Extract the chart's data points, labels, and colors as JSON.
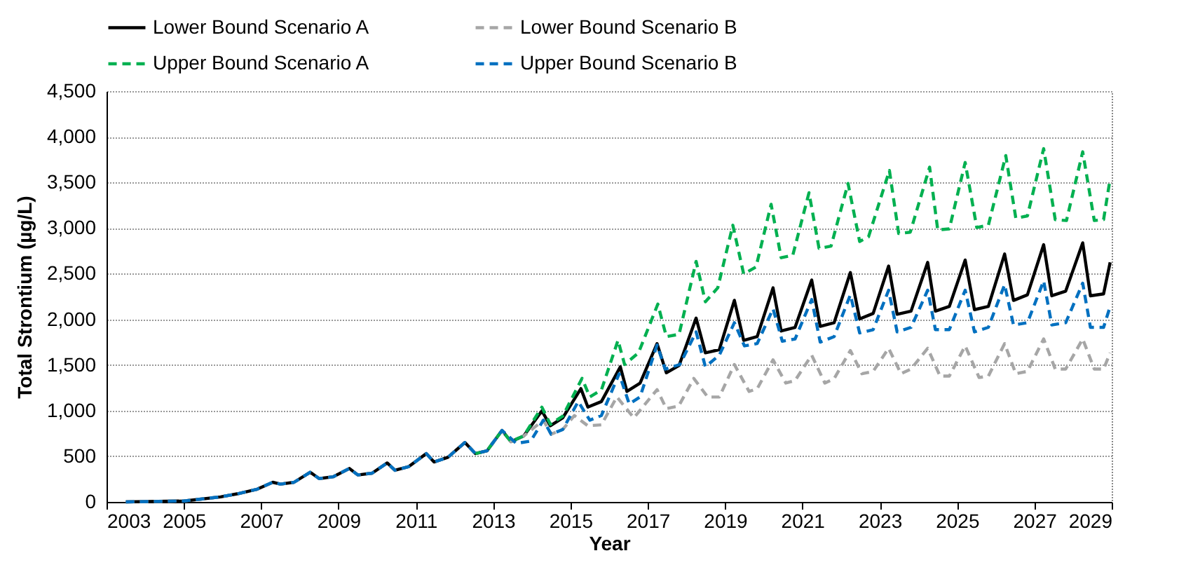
{
  "chart_data": {
    "type": "line",
    "xlabel": "Year",
    "ylabel": "Total Strontium (µg/L)",
    "xlim": [
      2003,
      2029
    ],
    "xticks": [
      2003,
      2005,
      2007,
      2009,
      2011,
      2013,
      2015,
      2017,
      2019,
      2021,
      2023,
      2025,
      2027,
      2029
    ],
    "ylim": [
      0,
      4500
    ],
    "yticks": [
      {
        "value": 0,
        "label": "0"
      },
      {
        "value": 500,
        "label": "500"
      },
      {
        "value": 1000,
        "label": "1,000"
      },
      {
        "value": 1500,
        "label": "1,500"
      },
      {
        "value": 2000,
        "label": "2,000"
      },
      {
        "value": 2500,
        "label": "2,500"
      },
      {
        "value": 3000,
        "label": "3,000"
      },
      {
        "value": 3500,
        "label": "3,500"
      },
      {
        "value": 4000,
        "label": "4,000"
      },
      {
        "value": 4500,
        "label": "4,500"
      }
    ],
    "grid": "y",
    "legend": "top",
    "marker": "none",
    "series": [
      {
        "name": "Lower Bound Scenario A",
        "color": "#000000",
        "line_style": "solid",
        "x": [
          2003.5,
          2005,
          2005.95,
          2006.4,
          2006.9,
          2007.3,
          2007.5,
          2007.85,
          2008.27,
          2008.5,
          2008.86,
          2009.28,
          2009.5,
          2009.87,
          2010.26,
          2010.46,
          2010.82,
          2011.27,
          2011.47,
          2011.83,
          2012.27,
          2012.54,
          2012.84,
          2013.23,
          2013.46,
          2013.79,
          2014.26,
          2014.48,
          2014.8,
          2015.27,
          2015.45,
          2015.8,
          2016.29,
          2016.46,
          2016.8,
          2017.24,
          2017.48,
          2017.81,
          2018.25,
          2018.49,
          2018.85,
          2019.24,
          2019.48,
          2019.83,
          2020.24,
          2020.45,
          2020.81,
          2021.24,
          2021.46,
          2021.82,
          2022.24,
          2022.48,
          2022.83,
          2023.23,
          2023.45,
          2023.81,
          2024.24,
          2024.44,
          2024.8,
          2025.21,
          2025.45,
          2025.81,
          2026.23,
          2026.46,
          2026.82,
          2027.24,
          2027.45,
          2027.81,
          2028.25,
          2028.45,
          2028.79,
          2028.96
        ],
        "values": [
          0,
          10,
          55,
          90,
          140,
          215,
          195,
          215,
          325,
          255,
          275,
          366,
          295,
          315,
          427,
          346,
          387,
          529,
          437,
          488,
          651,
          529,
          559,
          783,
          661,
          722,
          997,
          834,
          921,
          1241,
          1038,
          1099,
          1480,
          1210,
          1300,
          1734,
          1414,
          1495,
          2014,
          1633,
          1668,
          2208,
          1770,
          1811,
          2345,
          1872,
          1912,
          2431,
          1923,
          1963,
          2513,
          2004,
          2065,
          2584,
          2055,
          2090,
          2624,
          2090,
          2141,
          2650,
          2106,
          2141,
          2716,
          2207,
          2268,
          2818,
          2258,
          2309,
          2838,
          2258,
          2279,
          2624
        ]
      },
      {
        "name": "Lower Bound Scenario B",
        "color": "#a6a6a6",
        "line_style": "dashed",
        "x": [
          2003.5,
          2005,
          2005.95,
          2006.4,
          2006.9,
          2007.3,
          2007.5,
          2007.85,
          2008.27,
          2008.5,
          2008.86,
          2009.28,
          2009.5,
          2009.87,
          2010.26,
          2010.46,
          2010.82,
          2011.27,
          2011.47,
          2011.83,
          2012.27,
          2012.54,
          2012.84,
          2013.23,
          2013.46,
          2013.79,
          2014.3,
          2014.5,
          2014.8,
          2015.1,
          2015.45,
          2015.8,
          2016.2,
          2016.64,
          2017.24,
          2017.48,
          2017.8,
          2018.19,
          2018.55,
          2018.85,
          2019.24,
          2019.62,
          2019.83,
          2020.24,
          2020.57,
          2020.81,
          2021.24,
          2021.58,
          2021.82,
          2022.24,
          2022.54,
          2022.83,
          2023.23,
          2023.55,
          2023.81,
          2024.24,
          2024.56,
          2024.8,
          2025.21,
          2025.57,
          2025.81,
          2026.23,
          2026.52,
          2026.82,
          2027.24,
          2027.54,
          2027.81,
          2028.25,
          2028.55,
          2028.79,
          2028.96
        ],
        "values": [
          0,
          10,
          55,
          90,
          140,
          215,
          195,
          215,
          325,
          255,
          275,
          366,
          295,
          315,
          427,
          346,
          387,
          529,
          437,
          488,
          651,
          529,
          559,
          783,
          661,
          722,
          895,
          742,
          793,
          946,
          834,
          844,
          1150,
          921,
          1230,
          1022,
          1050,
          1353,
          1149,
          1149,
          1505,
          1210,
          1240,
          1556,
          1302,
          1330,
          1607,
          1302,
          1350,
          1658,
          1404,
          1430,
          1683,
          1404,
          1455,
          1683,
          1378,
          1378,
          1709,
          1363,
          1378,
          1734,
          1404,
          1430,
          1785,
          1455,
          1455,
          1785,
          1455,
          1455,
          1633
        ]
      },
      {
        "name": "Upper Bound Scenario A",
        "color": "#00b050",
        "line_style": "dashed",
        "x": [
          2012.54,
          2012.84,
          2013.23,
          2013.46,
          2013.79,
          2014.26,
          2014.48,
          2014.8,
          2015.3,
          2015.5,
          2015.8,
          2016.23,
          2016.4,
          2016.76,
          2017.26,
          2017.48,
          2017.81,
          2018.25,
          2018.49,
          2018.81,
          2019.2,
          2019.48,
          2019.8,
          2020.19,
          2020.45,
          2020.75,
          2021.17,
          2021.43,
          2021.74,
          2022.18,
          2022.48,
          2022.71,
          2023.25,
          2023.49,
          2023.79,
          2024.29,
          2024.5,
          2024.8,
          2025.21,
          2025.51,
          2025.81,
          2026.26,
          2026.52,
          2026.82,
          2027.24,
          2027.54,
          2027.83,
          2028.25,
          2028.55,
          2028.79,
          2028.96
        ],
        "values": [
          529,
          559,
          783,
          661,
          722,
          1038,
          850,
          940,
          1353,
          1150,
          1226,
          1770,
          1505,
          1633,
          2167,
          1811,
          1836,
          2635,
          2192,
          2345,
          3031,
          2497,
          2574,
          3260,
          2675,
          2701,
          3387,
          2777,
          2802,
          3489,
          2853,
          2904,
          3631,
          2940,
          2955,
          3667,
          2980,
          2991,
          3718,
          3006,
          3031,
          3794,
          3108,
          3133,
          3870,
          3092,
          3082,
          3835,
          3082,
          3092,
          3540
        ]
      },
      {
        "name": "Upper Bound Scenario B",
        "color": "#0070c0",
        "line_style": "dashed",
        "x": [
          2003.5,
          2005,
          2005.95,
          2006.4,
          2006.9,
          2007.3,
          2007.5,
          2007.85,
          2008.27,
          2008.5,
          2008.86,
          2009.28,
          2009.5,
          2009.87,
          2010.26,
          2010.46,
          2010.82,
          2011.27,
          2011.47,
          2011.83,
          2012.27,
          2012.54,
          2012.84,
          2013.23,
          2013.6,
          2013.97,
          2014.3,
          2014.5,
          2014.8,
          2015.2,
          2015.5,
          2015.8,
          2016.26,
          2016.52,
          2016.8,
          2017.24,
          2017.45,
          2017.83,
          2018.25,
          2018.49,
          2018.85,
          2019.24,
          2019.5,
          2019.83,
          2020.24,
          2020.48,
          2020.81,
          2021.24,
          2021.46,
          2021.82,
          2022.24,
          2022.48,
          2022.83,
          2023.23,
          2023.45,
          2023.81,
          2024.24,
          2024.44,
          2024.8,
          2025.21,
          2025.45,
          2025.81,
          2026.23,
          2026.46,
          2026.82,
          2027.24,
          2027.45,
          2027.81,
          2028.25,
          2028.45,
          2028.79,
          2028.96
        ],
        "values": [
          0,
          10,
          55,
          90,
          140,
          215,
          195,
          215,
          325,
          255,
          275,
          366,
          295,
          315,
          427,
          346,
          387,
          529,
          437,
          488,
          651,
          529,
          559,
          783,
          641,
          666,
          895,
          742,
          793,
          1099,
          895,
          946,
          1404,
          1073,
          1150,
          1719,
          1455,
          1505,
          1862,
          1480,
          1607,
          1963,
          1709,
          1734,
          2116,
          1760,
          1785,
          2217,
          1750,
          1811,
          2268,
          1851,
          1887,
          2319,
          1862,
          1912,
          2319,
          1887,
          1887,
          2319,
          1862,
          1912,
          2380,
          1938,
          1963,
          2421,
          1938,
          1963,
          2396,
          1912,
          1912,
          2141
        ]
      }
    ]
  }
}
